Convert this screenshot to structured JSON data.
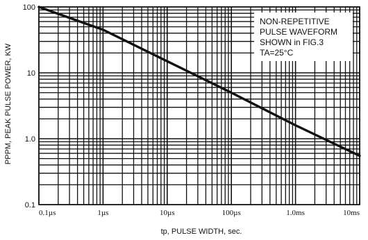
{
  "chart_data": {
    "type": "line",
    "xlabel": "tp, PULSE WIDTH, sec.",
    "ylabel": "PPPM, PEAK PULSE POWER, KW",
    "x_scale": "log",
    "y_scale": "log",
    "xlim": [
      "0.1µs",
      "10ms"
    ],
    "ylim": [
      0.1,
      100
    ],
    "x_tick_labels": [
      "0.1µs",
      "1µs",
      "10µs",
      "100µs",
      "1.0ms",
      "10ms"
    ],
    "y_tick_labels": [
      "0.1",
      "1.0",
      "10",
      "100"
    ],
    "grid": true,
    "annotation": {
      "lines": [
        "NON-REPETITIVE",
        "PULSE WAVEFORM",
        "SHOWN in FIG.3",
        "TA=25°C"
      ],
      "placement": "top-right"
    },
    "series": [
      {
        "x": [
          "0.1µs",
          "1µs",
          "10µs",
          "100µs",
          "1.0ms",
          "10ms"
        ],
        "y": [
          100,
          45,
          15,
          5,
          1.6,
          0.55
        ]
      }
    ]
  }
}
